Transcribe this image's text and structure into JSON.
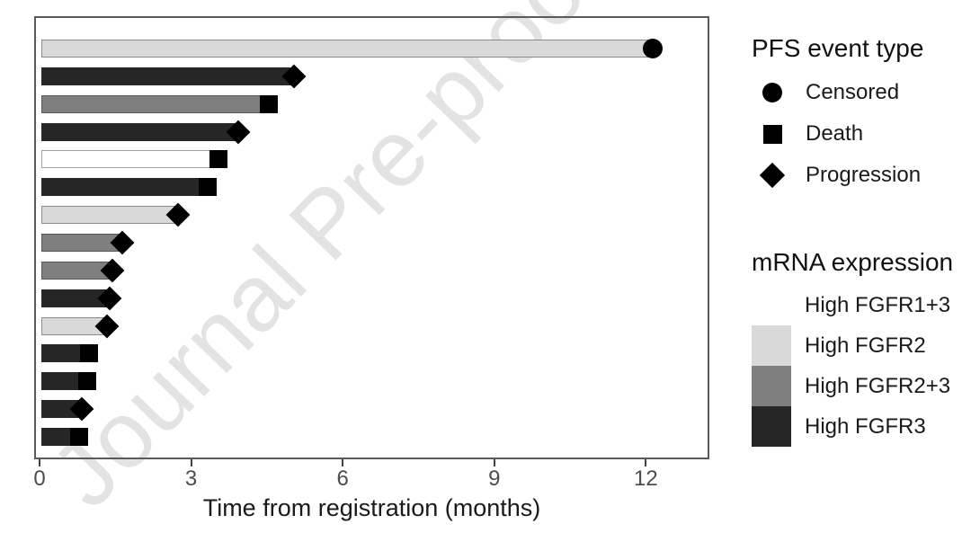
{
  "watermark": {
    "text": "Journal Pre-proof"
  },
  "chart_data": {
    "type": "bar",
    "orientation": "horizontal_swimmer",
    "title": "",
    "xlabel": "Time from registration (months)",
    "ylabel": "",
    "x_ticks": [
      0,
      3,
      6,
      9,
      12
    ],
    "xlim": [
      0,
      13.3
    ],
    "grid": false,
    "legend_position": "right",
    "bars": [
      {
        "months": 12.1,
        "event": "Censored",
        "group": "High FGFR2"
      },
      {
        "months": 5.0,
        "event": "Progression",
        "group": "High FGFR3"
      },
      {
        "months": 4.5,
        "event": "Death",
        "group": "High FGFR2+3"
      },
      {
        "months": 3.9,
        "event": "Progression",
        "group": "High FGFR3"
      },
      {
        "months": 3.5,
        "event": "Death",
        "group": "High FGFR1+3"
      },
      {
        "months": 3.3,
        "event": "Death",
        "group": "High FGFR3"
      },
      {
        "months": 2.7,
        "event": "Progression",
        "group": "High FGFR2"
      },
      {
        "months": 1.6,
        "event": "Progression",
        "group": "High FGFR2+3"
      },
      {
        "months": 1.4,
        "event": "Progression",
        "group": "High FGFR2+3"
      },
      {
        "months": 1.35,
        "event": "Progression",
        "group": "High FGFR3"
      },
      {
        "months": 1.3,
        "event": "Progression",
        "group": "High FGFR2"
      },
      {
        "months": 0.95,
        "event": "Death",
        "group": "High FGFR3"
      },
      {
        "months": 0.9,
        "event": "Death",
        "group": "High FGFR3"
      },
      {
        "months": 0.8,
        "event": "Progression",
        "group": "High FGFR3"
      },
      {
        "months": 0.75,
        "event": "Death",
        "group": "High FGFR3"
      }
    ],
    "group_colors": {
      "High FGFR1+3": "#ffffff",
      "High FGFR2": "#d9d9d9",
      "High FGFR2+3": "#7f7f7f",
      "High FGFR3": "#262626"
    },
    "event_markers": {
      "Censored": "circle",
      "Death": "square",
      "Progression": "diamond"
    }
  },
  "legends": {
    "pfs": {
      "title": "PFS event type",
      "items": [
        {
          "label": "Censored",
          "marker": "circle"
        },
        {
          "label": "Death",
          "marker": "square"
        },
        {
          "label": "Progression",
          "marker": "diamond"
        }
      ]
    },
    "mrna": {
      "title": "mRNA expression",
      "items": [
        {
          "label": "High FGFR1+3",
          "color": "#ffffff"
        },
        {
          "label": "High FGFR2",
          "color": "#d9d9d9"
        },
        {
          "label": "High FGFR2+3",
          "color": "#7f7f7f"
        },
        {
          "label": "High FGFR3",
          "color": "#262626"
        }
      ]
    }
  }
}
